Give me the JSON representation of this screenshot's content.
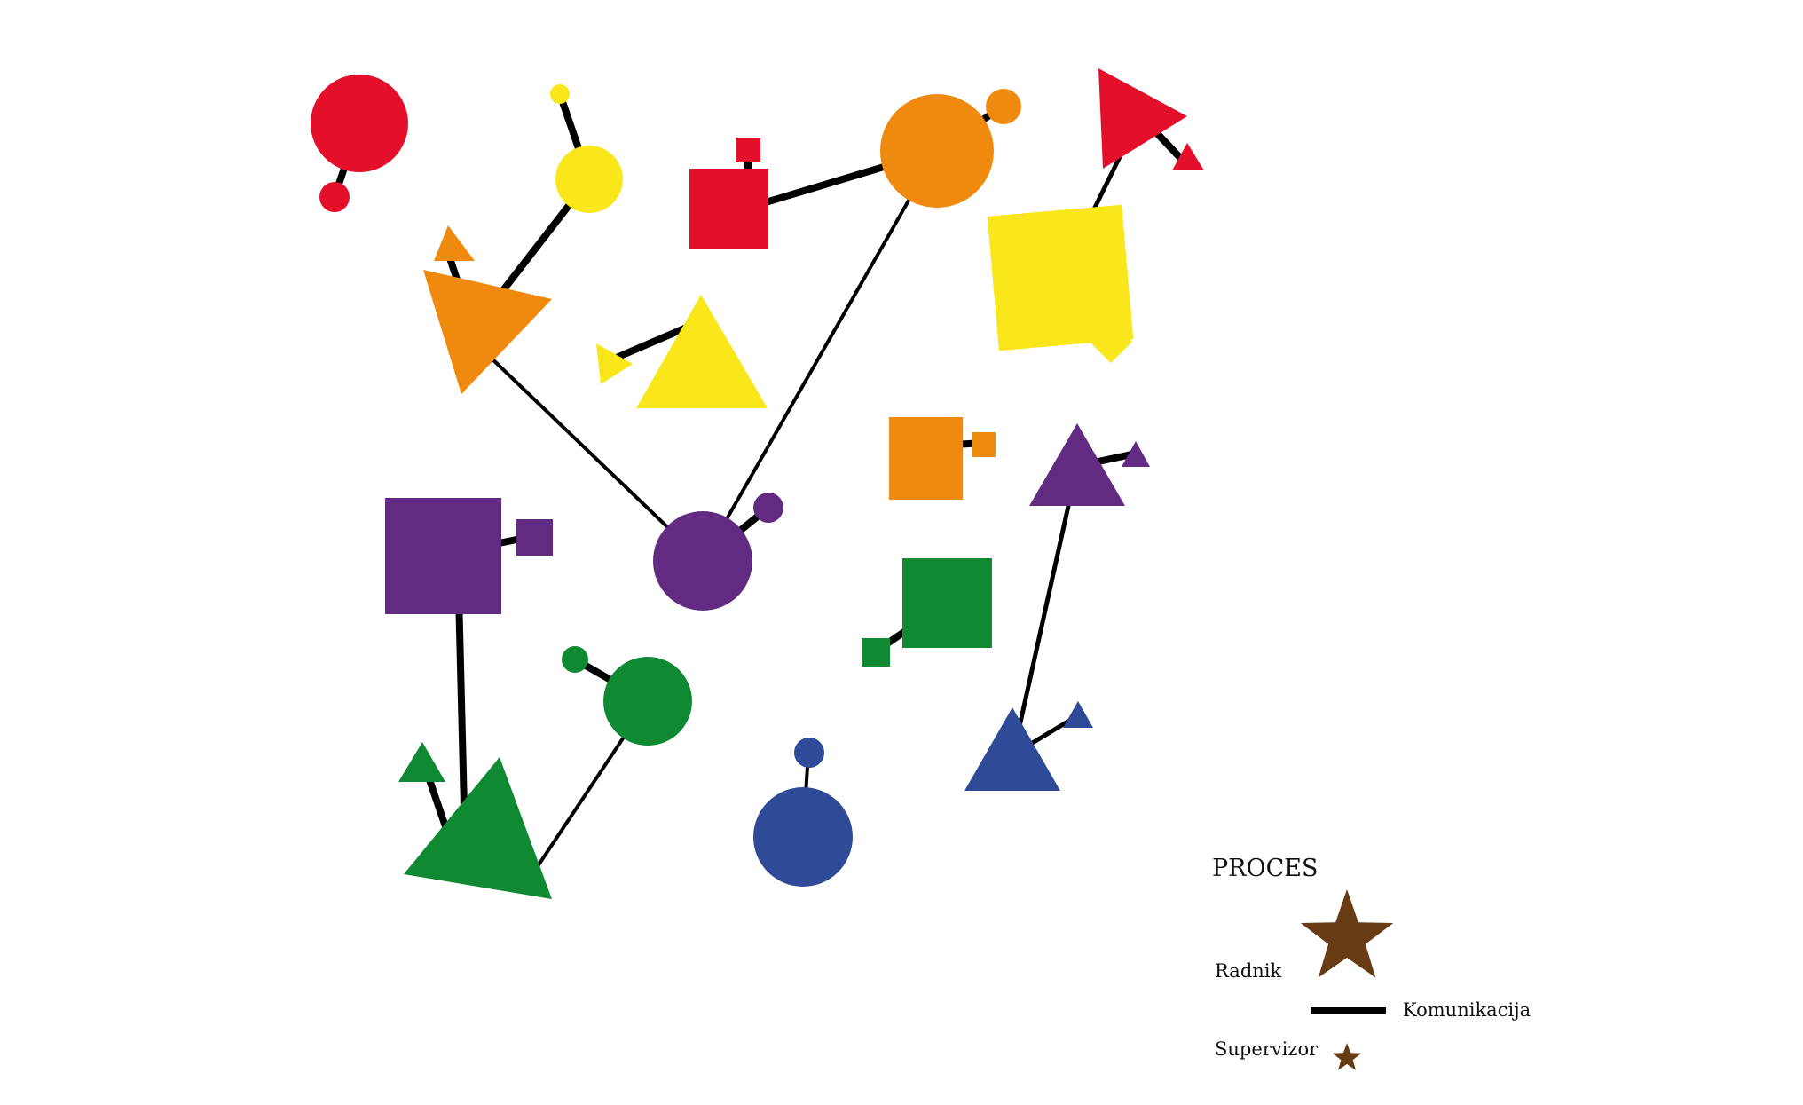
{
  "colors": {
    "red": "#e30f2b",
    "yellow": "#f9e71c",
    "orange": "#f08a0e",
    "purple": "#602b81",
    "green": "#0f8932",
    "blue": "#2f4b97",
    "legend_star": "#673b14",
    "line": "#000000"
  },
  "legend": {
    "title": "PROCES",
    "worker_label": "Radnik",
    "communication_label": "Komunikacija",
    "supervisor_label": "Supervizor",
    "worker_icon": "large-brown-star-icon",
    "supervisor_icon": "small-brown-star-icon"
  }
}
